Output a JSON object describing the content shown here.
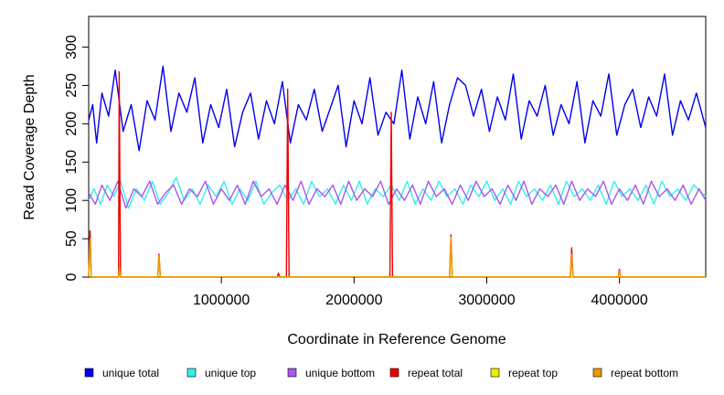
{
  "chart_data": {
    "type": "line",
    "title": "",
    "xlabel": "Coordinate in Reference Genome",
    "ylabel": "Read Coverage Depth",
    "xlim": [
      1,
      4650000
    ],
    "ylim": [
      0,
      340
    ],
    "xticks": [
      1000000,
      2000000,
      3000000,
      4000000
    ],
    "xtick_labels": [
      "1000000",
      "2000000",
      "3000000",
      "4000000"
    ],
    "yticks": [
      0,
      50,
      100,
      150,
      200,
      250,
      300
    ],
    "ytick_labels": [
      "0",
      "50",
      "100",
      "150",
      "200",
      "250",
      "300"
    ],
    "grid": false,
    "legend_position": "bottom",
    "legend": [
      {
        "label": "unique total",
        "color": "#0000ee"
      },
      {
        "label": "unique top",
        "color": "#33eeee"
      },
      {
        "label": "unique bottom",
        "color": "#aa55ee"
      },
      {
        "label": "repeat total",
        "color": "#ee0000"
      },
      {
        "label": "repeat top",
        "color": "#eeee00"
      },
      {
        "label": "repeat bottom",
        "color": "#ee9900"
      }
    ],
    "series": [
      {
        "name": "unique total",
        "color": "#0000ee",
        "points": [
          [
            1,
            205
          ],
          [
            30000,
            225
          ],
          [
            60000,
            175
          ],
          [
            100000,
            240
          ],
          [
            150000,
            210
          ],
          [
            200000,
            270
          ],
          [
            260000,
            190
          ],
          [
            320000,
            225
          ],
          [
            380000,
            165
          ],
          [
            440000,
            230
          ],
          [
            500000,
            205
          ],
          [
            560000,
            275
          ],
          [
            620000,
            190
          ],
          [
            680000,
            240
          ],
          [
            740000,
            215
          ],
          [
            800000,
            260
          ],
          [
            860000,
            175
          ],
          [
            920000,
            225
          ],
          [
            980000,
            195
          ],
          [
            1040000,
            245
          ],
          [
            1100000,
            170
          ],
          [
            1160000,
            215
          ],
          [
            1220000,
            240
          ],
          [
            1280000,
            180
          ],
          [
            1340000,
            230
          ],
          [
            1400000,
            200
          ],
          [
            1460000,
            255
          ],
          [
            1520000,
            175
          ],
          [
            1580000,
            225
          ],
          [
            1640000,
            205
          ],
          [
            1700000,
            245
          ],
          [
            1760000,
            190
          ],
          [
            1820000,
            220
          ],
          [
            1880000,
            250
          ],
          [
            1940000,
            170
          ],
          [
            2000000,
            230
          ],
          [
            2060000,
            200
          ],
          [
            2120000,
            260
          ],
          [
            2180000,
            185
          ],
          [
            2240000,
            215
          ],
          [
            2300000,
            200
          ],
          [
            2360000,
            270
          ],
          [
            2420000,
            180
          ],
          [
            2480000,
            235
          ],
          [
            2540000,
            200
          ],
          [
            2600000,
            255
          ],
          [
            2660000,
            175
          ],
          [
            2720000,
            225
          ],
          [
            2780000,
            260
          ],
          [
            2840000,
            250
          ],
          [
            2900000,
            210
          ],
          [
            2960000,
            245
          ],
          [
            3020000,
            190
          ],
          [
            3080000,
            235
          ],
          [
            3140000,
            205
          ],
          [
            3200000,
            265
          ],
          [
            3260000,
            180
          ],
          [
            3320000,
            230
          ],
          [
            3380000,
            210
          ],
          [
            3440000,
            250
          ],
          [
            3500000,
            185
          ],
          [
            3560000,
            225
          ],
          [
            3620000,
            200
          ],
          [
            3680000,
            255
          ],
          [
            3740000,
            175
          ],
          [
            3800000,
            230
          ],
          [
            3860000,
            210
          ],
          [
            3920000,
            265
          ],
          [
            3980000,
            185
          ],
          [
            4040000,
            225
          ],
          [
            4100000,
            245
          ],
          [
            4160000,
            195
          ],
          [
            4220000,
            235
          ],
          [
            4280000,
            210
          ],
          [
            4340000,
            265
          ],
          [
            4400000,
            185
          ],
          [
            4460000,
            230
          ],
          [
            4520000,
            205
          ],
          [
            4580000,
            240
          ],
          [
            4650000,
            195
          ]
        ]
      },
      {
        "name": "unique top",
        "color": "#33eeee",
        "points": [
          [
            1,
            100
          ],
          [
            40000,
            115
          ],
          [
            90000,
            95
          ],
          [
            140000,
            120
          ],
          [
            190000,
            105
          ],
          [
            240000,
            125
          ],
          [
            300000,
            90
          ],
          [
            360000,
            115
          ],
          [
            420000,
            100
          ],
          [
            480000,
            125
          ],
          [
            540000,
            95
          ],
          [
            600000,
            110
          ],
          [
            660000,
            130
          ],
          [
            720000,
            100
          ],
          [
            780000,
            115
          ],
          [
            840000,
            95
          ],
          [
            900000,
            120
          ],
          [
            960000,
            105
          ],
          [
            1020000,
            125
          ],
          [
            1080000,
            95
          ],
          [
            1140000,
            115
          ],
          [
            1200000,
            100
          ],
          [
            1260000,
            125
          ],
          [
            1320000,
            95
          ],
          [
            1380000,
            110
          ],
          [
            1440000,
            120
          ],
          [
            1500000,
            100
          ],
          [
            1560000,
            115
          ],
          [
            1620000,
            95
          ],
          [
            1680000,
            125
          ],
          [
            1740000,
            105
          ],
          [
            1800000,
            115
          ],
          [
            1860000,
            95
          ],
          [
            1920000,
            120
          ],
          [
            1980000,
            100
          ],
          [
            2040000,
            125
          ],
          [
            2100000,
            95
          ],
          [
            2160000,
            115
          ],
          [
            2220000,
            105
          ],
          [
            2280000,
            120
          ],
          [
            2340000,
            100
          ],
          [
            2400000,
            125
          ],
          [
            2460000,
            95
          ],
          [
            2520000,
            115
          ],
          [
            2580000,
            100
          ],
          [
            2640000,
            125
          ],
          [
            2700000,
            105
          ],
          [
            2760000,
            115
          ],
          [
            2820000,
            95
          ],
          [
            2880000,
            120
          ],
          [
            2940000,
            105
          ],
          [
            3000000,
            125
          ],
          [
            3060000,
            100
          ],
          [
            3120000,
            115
          ],
          [
            3180000,
            95
          ],
          [
            3240000,
            125
          ],
          [
            3300000,
            105
          ],
          [
            3360000,
            115
          ],
          [
            3420000,
            100
          ],
          [
            3480000,
            120
          ],
          [
            3540000,
            95
          ],
          [
            3600000,
            125
          ],
          [
            3660000,
            105
          ],
          [
            3720000,
            115
          ],
          [
            3780000,
            100
          ],
          [
            3840000,
            120
          ],
          [
            3900000,
            95
          ],
          [
            3960000,
            125
          ],
          [
            4020000,
            105
          ],
          [
            4080000,
            115
          ],
          [
            4140000,
            100
          ],
          [
            4200000,
            120
          ],
          [
            4260000,
            95
          ],
          [
            4320000,
            125
          ],
          [
            4380000,
            105
          ],
          [
            4440000,
            115
          ],
          [
            4500000,
            100
          ],
          [
            4560000,
            120
          ],
          [
            4650000,
            105
          ]
        ]
      },
      {
        "name": "unique bottom",
        "color": "#aa55ee",
        "points": [
          [
            1,
            110
          ],
          [
            50000,
            95
          ],
          [
            100000,
            120
          ],
          [
            160000,
            100
          ],
          [
            220000,
            125
          ],
          [
            280000,
            90
          ],
          [
            340000,
            115
          ],
          [
            400000,
            105
          ],
          [
            460000,
            125
          ],
          [
            520000,
            95
          ],
          [
            580000,
            110
          ],
          [
            640000,
            120
          ],
          [
            700000,
            95
          ],
          [
            760000,
            115
          ],
          [
            820000,
            105
          ],
          [
            880000,
            125
          ],
          [
            940000,
            95
          ],
          [
            1000000,
            115
          ],
          [
            1060000,
            100
          ],
          [
            1120000,
            120
          ],
          [
            1180000,
            95
          ],
          [
            1240000,
            125
          ],
          [
            1300000,
            105
          ],
          [
            1360000,
            115
          ],
          [
            1420000,
            95
          ],
          [
            1480000,
            120
          ],
          [
            1540000,
            100
          ],
          [
            1600000,
            125
          ],
          [
            1660000,
            95
          ],
          [
            1720000,
            115
          ],
          [
            1780000,
            105
          ],
          [
            1840000,
            120
          ],
          [
            1900000,
            95
          ],
          [
            1960000,
            125
          ],
          [
            2020000,
            100
          ],
          [
            2080000,
            115
          ],
          [
            2140000,
            105
          ],
          [
            2200000,
            125
          ],
          [
            2260000,
            95
          ],
          [
            2320000,
            115
          ],
          [
            2380000,
            100
          ],
          [
            2440000,
            120
          ],
          [
            2500000,
            95
          ],
          [
            2560000,
            125
          ],
          [
            2620000,
            105
          ],
          [
            2680000,
            115
          ],
          [
            2740000,
            95
          ],
          [
            2800000,
            120
          ],
          [
            2860000,
            100
          ],
          [
            2920000,
            125
          ],
          [
            2980000,
            105
          ],
          [
            3040000,
            115
          ],
          [
            3100000,
            95
          ],
          [
            3160000,
            120
          ],
          [
            3220000,
            100
          ],
          [
            3280000,
            125
          ],
          [
            3340000,
            95
          ],
          [
            3400000,
            115
          ],
          [
            3460000,
            105
          ],
          [
            3520000,
            120
          ],
          [
            3580000,
            95
          ],
          [
            3640000,
            125
          ],
          [
            3700000,
            100
          ],
          [
            3760000,
            115
          ],
          [
            3820000,
            105
          ],
          [
            3880000,
            125
          ],
          [
            3940000,
            95
          ],
          [
            4000000,
            115
          ],
          [
            4060000,
            100
          ],
          [
            4120000,
            120
          ],
          [
            4180000,
            95
          ],
          [
            4240000,
            125
          ],
          [
            4300000,
            105
          ],
          [
            4360000,
            115
          ],
          [
            4420000,
            100
          ],
          [
            4480000,
            120
          ],
          [
            4540000,
            95
          ],
          [
            4600000,
            115
          ],
          [
            4650000,
            100
          ]
        ]
      },
      {
        "name": "repeat total",
        "color": "#ee0000",
        "points": [
          [
            1,
            0
          ],
          [
            10000,
            60
          ],
          [
            20000,
            0
          ],
          [
            225000,
            0
          ],
          [
            230000,
            268
          ],
          [
            240000,
            0
          ],
          [
            520000,
            0
          ],
          [
            530000,
            30
          ],
          [
            540000,
            0
          ],
          [
            1420000,
            0
          ],
          [
            1430000,
            5
          ],
          [
            1440000,
            0
          ],
          [
            1490000,
            0
          ],
          [
            1500000,
            245
          ],
          [
            1510000,
            0
          ],
          [
            2270000,
            0
          ],
          [
            2280000,
            215
          ],
          [
            2290000,
            0
          ],
          [
            2720000,
            0
          ],
          [
            2730000,
            55
          ],
          [
            2740000,
            0
          ],
          [
            3630000,
            0
          ],
          [
            3640000,
            38
          ],
          [
            3650000,
            0
          ],
          [
            3990000,
            0
          ],
          [
            4000000,
            10
          ],
          [
            4010000,
            0
          ],
          [
            4650000,
            0
          ]
        ]
      },
      {
        "name": "repeat top",
        "color": "#eeee00",
        "points": [
          [
            1,
            0
          ],
          [
            10000,
            30
          ],
          [
            20000,
            0
          ],
          [
            520000,
            0
          ],
          [
            530000,
            15
          ],
          [
            540000,
            0
          ],
          [
            2720000,
            0
          ],
          [
            2730000,
            25
          ],
          [
            2740000,
            0
          ],
          [
            4650000,
            0
          ]
        ]
      },
      {
        "name": "repeat bottom",
        "color": "#ee9900",
        "points": [
          [
            1,
            0
          ],
          [
            10000,
            50
          ],
          [
            20000,
            0
          ],
          [
            225000,
            0
          ],
          [
            230000,
            12
          ],
          [
            240000,
            0
          ],
          [
            520000,
            0
          ],
          [
            530000,
            28
          ],
          [
            540000,
            0
          ],
          [
            2720000,
            0
          ],
          [
            2730000,
            52
          ],
          [
            2740000,
            0
          ],
          [
            3630000,
            0
          ],
          [
            3640000,
            30
          ],
          [
            3650000,
            0
          ],
          [
            3990000,
            0
          ],
          [
            4000000,
            8
          ],
          [
            4010000,
            0
          ],
          [
            4650000,
            0
          ]
        ]
      }
    ]
  }
}
